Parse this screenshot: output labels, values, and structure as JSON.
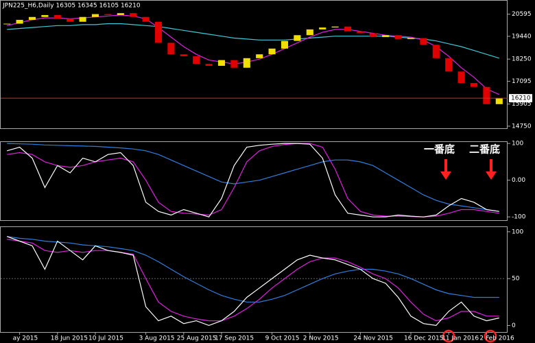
{
  "chart_data": [
    {
      "type": "price",
      "title": "JPN225_H6,Daily  16305 16345 16105 16210",
      "xlim": [
        -0.5,
        39.5
      ],
      "ylim": [
        14640,
        21300
      ],
      "yticks": [
        20595,
        19440,
        18250,
        17095,
        15905,
        14750
      ],
      "price_line": 16210,
      "price_line_color": "#c0392b",
      "up_color": "#f0e000",
      "down_color": "#e00000",
      "values": [
        20100,
        20300,
        20450,
        20550,
        20350,
        20200,
        20450,
        20600,
        20550,
        20650,
        20450,
        20200,
        19100,
        18500,
        18400,
        18000,
        17900,
        18200,
        17800,
        18300,
        18500,
        18800,
        19200,
        19500,
        19800,
        19900,
        19950,
        19700,
        19600,
        19400,
        19500,
        19300,
        19350,
        19000,
        18300,
        17600,
        17000,
        16800,
        15900,
        16210
      ],
      "series": [
        {
          "color": "#40c8d8",
          "values": [
            19800,
            19850,
            19900,
            19950,
            20000,
            20000,
            20050,
            20050,
            20100,
            20100,
            20050,
            20000,
            19950,
            19850,
            19750,
            19650,
            19550,
            19450,
            19350,
            19300,
            19250,
            19250,
            19250,
            19300,
            19350,
            19400,
            19450,
            19450,
            19450,
            19450,
            19450,
            19400,
            19350,
            19300,
            19200,
            19050,
            18900,
            18700,
            18500,
            18300
          ]
        },
        {
          "color": "#e020e0",
          "values": [
            20000,
            20150,
            20300,
            20400,
            20400,
            20350,
            20400,
            20450,
            20500,
            20550,
            20500,
            20350,
            19900,
            19400,
            18900,
            18500,
            18200,
            18100,
            18000,
            18100,
            18250,
            18500,
            18800,
            19100,
            19400,
            19650,
            19800,
            19800,
            19700,
            19600,
            19500,
            19450,
            19400,
            19250,
            18900,
            18400,
            17800,
            17300,
            16700,
            16400
          ]
        }
      ]
    },
    {
      "type": "line",
      "xlim": [
        -0.5,
        39.5
      ],
      "ylim": [
        -109,
        104
      ],
      "yticks": [
        100,
        {
          "value": 0,
          "label": "0.00"
        },
        -100
      ],
      "annotations": [
        "一番底",
        "二番底"
      ],
      "annotation_color": "#ff2020",
      "series": [
        {
          "color": "#2f7fe0",
          "values": [
            100,
            99,
            98,
            96,
            95,
            94,
            93,
            92,
            90,
            88,
            85,
            80,
            70,
            55,
            40,
            25,
            10,
            -5,
            -10,
            -5,
            0,
            10,
            20,
            30,
            40,
            50,
            55,
            55,
            50,
            40,
            20,
            0,
            -20,
            -40,
            -55,
            -65,
            -70,
            -75,
            -80,
            -85
          ]
        },
        {
          "color": "#e020e0",
          "values": [
            70,
            75,
            70,
            50,
            40,
            35,
            40,
            50,
            55,
            60,
            50,
            0,
            -60,
            -85,
            -90,
            -92,
            -95,
            -80,
            -20,
            50,
            80,
            92,
            97,
            100,
            100,
            90,
            30,
            -50,
            -85,
            -95,
            -98,
            -98,
            -99,
            -100,
            -98,
            -90,
            -80,
            -80,
            -85,
            -90
          ]
        },
        {
          "color": "#ffffff",
          "values": [
            80,
            90,
            60,
            -20,
            40,
            20,
            60,
            50,
            70,
            75,
            40,
            -60,
            -85,
            -95,
            -80,
            -90,
            -100,
            -50,
            40,
            90,
            95,
            98,
            100,
            100,
            98,
            60,
            -40,
            -90,
            -95,
            -100,
            -100,
            -95,
            -98,
            -100,
            -95,
            -70,
            -50,
            -60,
            -80,
            -85
          ]
        }
      ]
    },
    {
      "type": "line",
      "xlim": [
        -0.5,
        39.5
      ],
      "ylim": [
        -7,
        105
      ],
      "yticks": [
        100,
        50,
        0
      ],
      "level": 50,
      "xticks": [
        {
          "value": 1,
          "label": "ay 2015"
        },
        {
          "value": 4,
          "label": "18 Jun 2015"
        },
        {
          "value": 7,
          "label": "10 Jul 2015"
        },
        {
          "value": 11,
          "label": "3 Aug 2015"
        },
        {
          "value": 14,
          "label": "25 Aug 2015"
        },
        {
          "value": 17,
          "label": "17 Sep 2015"
        },
        {
          "value": 21,
          "label": "9 Oct 2015"
        },
        {
          "value": 24,
          "label": "2 Nov 2015"
        },
        {
          "value": 28,
          "label": "24 Nov 2015"
        },
        {
          "value": 32,
          "label": "16 Dec 2015"
        },
        {
          "value": 35,
          "label": "11 Jan 2016"
        },
        {
          "value": 38,
          "label": "2 Feb 2016"
        }
      ],
      "series": [
        {
          "color": "#2f7fe0",
          "values": [
            95,
            93,
            92,
            90,
            89,
            88,
            86,
            85,
            84,
            82,
            80,
            75,
            68,
            60,
            52,
            45,
            38,
            32,
            28,
            25,
            25,
            28,
            32,
            38,
            44,
            50,
            55,
            58,
            60,
            60,
            58,
            55,
            50,
            44,
            38,
            34,
            32,
            30,
            30,
            30
          ]
        },
        {
          "color": "#e020e0",
          "values": [
            92,
            90,
            88,
            80,
            78,
            80,
            78,
            80,
            80,
            78,
            76,
            50,
            25,
            15,
            10,
            7,
            5,
            5,
            10,
            18,
            28,
            40,
            50,
            60,
            68,
            72,
            72,
            68,
            62,
            55,
            50,
            40,
            25,
            12,
            5,
            8,
            15,
            15,
            10,
            10
          ]
        },
        {
          "color": "#ffffff",
          "values": [
            95,
            90,
            85,
            60,
            90,
            80,
            70,
            85,
            80,
            78,
            75,
            20,
            5,
            10,
            2,
            5,
            0,
            5,
            15,
            30,
            40,
            50,
            60,
            70,
            75,
            72,
            70,
            65,
            60,
            50,
            45,
            30,
            10,
            2,
            0,
            15,
            25,
            10,
            5,
            8
          ]
        }
      ]
    }
  ]
}
